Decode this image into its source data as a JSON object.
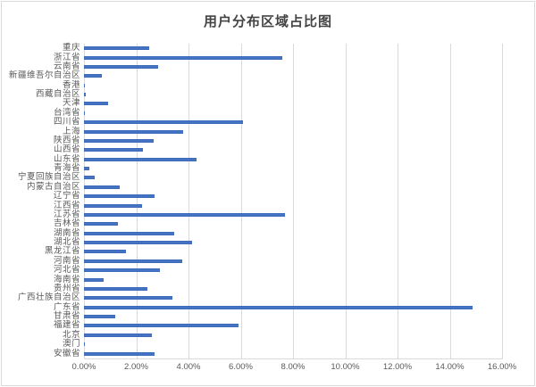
{
  "chart_data": {
    "type": "bar",
    "orientation": "horizontal",
    "title": "用户分布区域占比图",
    "categories": [
      "重庆",
      "浙江省",
      "云南省",
      "新疆维吾尔自治区",
      "香港",
      "西藏自治区",
      "天津",
      "台湾省",
      "四川省",
      "上海",
      "陕西省",
      "山西省",
      "山东省",
      "青海省",
      "宁夏回族自治区",
      "内蒙古自治区",
      "辽宁省",
      "江西省",
      "江苏省",
      "吉林省",
      "湖南省",
      "湖北省",
      "黑龙江省",
      "河南省",
      "河北省",
      "海南省",
      "贵州省",
      "广西壮族自治区",
      "广东省",
      "甘肃省",
      "福建省",
      "北京",
      "澳门",
      "安徽省"
    ],
    "values": [
      2.5,
      7.6,
      2.85,
      0.7,
      0.01,
      0.07,
      0.92,
      0.01,
      6.1,
      3.8,
      2.67,
      2.26,
      4.32,
      0.22,
      0.41,
      1.36,
      2.71,
      2.21,
      7.7,
      1.29,
      3.45,
      4.14,
      1.61,
      3.77,
      2.89,
      0.75,
      2.43,
      3.37,
      14.87,
      1.21,
      5.91,
      2.6,
      0.01,
      2.69
    ],
    "value_unit": "%",
    "xlabel": "",
    "ylabel": "",
    "xlim": [
      0,
      16
    ],
    "x_ticks": [
      "0.00%",
      "2.00%",
      "4.00%",
      "6.00%",
      "8.00%",
      "10.00%",
      "12.00%",
      "14.00%",
      "16.00%"
    ],
    "grid": true,
    "legend": false,
    "colors": {
      "bar": "#4472c4",
      "bar_border": "#3a63ad",
      "grid": "#d9d9d9",
      "axis_text": "#595959",
      "title_text": "#444444",
      "chart_border": "#d9d9d9"
    }
  }
}
